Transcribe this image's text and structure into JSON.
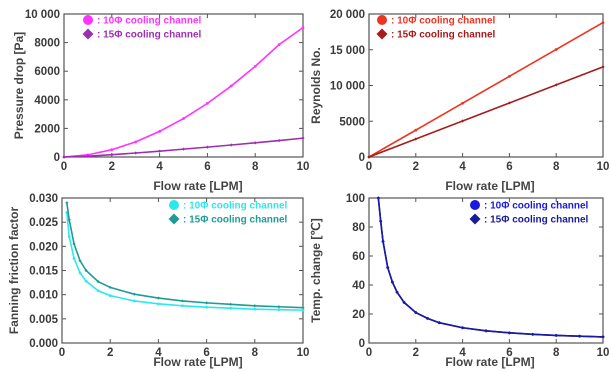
{
  "chart_data": [
    {
      "type": "line",
      "xlabel": "Flow rate [LPM]",
      "ylabel": "Pressure drop [Pa]",
      "xlim": [
        0,
        10
      ],
      "ylim": [
        0,
        10000
      ],
      "xticks": [
        "0",
        "2",
        "4",
        "6",
        "8",
        "10"
      ],
      "yticks": [
        "0",
        "2000",
        "4000",
        "6000",
        "8000",
        "10 000"
      ],
      "grid": false,
      "legend": "top-left",
      "series": [
        {
          "name": ": 10Φ cooling channel",
          "color": "#ff33ff",
          "marker": "circle",
          "x": [
            0,
            1,
            2,
            3,
            4,
            5,
            6,
            7,
            8,
            9,
            10
          ],
          "y": [
            0,
            150,
            510,
            1060,
            1790,
            2690,
            3750,
            4970,
            6340,
            7860,
            9050
          ]
        },
        {
          "name": ": 15Φ cooling channel",
          "color": "#9c2fb0",
          "marker": "diamond",
          "x": [
            0,
            1,
            2,
            3,
            4,
            5,
            6,
            7,
            8,
            9,
            10
          ],
          "y": [
            0,
            60,
            160,
            280,
            410,
            550,
            690,
            840,
            990,
            1150,
            1320
          ]
        }
      ]
    },
    {
      "type": "line",
      "xlabel": "Flow rate [LPM]",
      "ylabel": "Reynolds No.",
      "xlim": [
        0,
        10
      ],
      "ylim": [
        0,
        20000
      ],
      "xticks": [
        "0",
        "2",
        "4",
        "6",
        "8",
        "10"
      ],
      "yticks": [
        "0",
        "5000",
        "10 000",
        "15 000",
        "20 000"
      ],
      "grid": false,
      "legend": "top-left",
      "series": [
        {
          "name": ": 10Φ cooling channel",
          "color": "#ee3322",
          "marker": "circle",
          "x": [
            0,
            2,
            4,
            6,
            8,
            10
          ],
          "y": [
            0,
            3760,
            7520,
            11280,
            15040,
            18800
          ]
        },
        {
          "name": ": 15Φ cooling channel",
          "color": "#a51d1d",
          "marker": "diamond",
          "x": [
            0,
            2,
            4,
            6,
            8,
            10
          ],
          "y": [
            0,
            2520,
            5040,
            7560,
            10080,
            12600
          ]
        }
      ]
    },
    {
      "type": "line",
      "xlabel": "Flow rate [LPM]",
      "ylabel": "Fanning friction factor",
      "xlim": [
        0,
        10
      ],
      "ylim": [
        0,
        0.03
      ],
      "xticks": [
        "0",
        "2",
        "4",
        "6",
        "8",
        "10"
      ],
      "yticks": [
        "0.000",
        "0.005",
        "0.010",
        "0.015",
        "0.020",
        "0.025",
        "0.030"
      ],
      "grid": false,
      "legend": "top-right",
      "series": [
        {
          "name": ": 10Φ cooling channel",
          "color": "#2de8ea",
          "marker": "circle",
          "x": [
            0.2,
            0.3,
            0.5,
            0.75,
            1,
            1.5,
            2,
            3,
            4,
            5,
            6,
            7,
            8,
            9,
            10
          ],
          "y": [
            0.027,
            0.022,
            0.0175,
            0.0145,
            0.0128,
            0.0108,
            0.0098,
            0.0087,
            0.0081,
            0.0077,
            0.0074,
            0.0072,
            0.007,
            0.0069,
            0.0068
          ]
        },
        {
          "name": ": 15Φ cooling channel",
          "color": "#1f9b95",
          "marker": "diamond",
          "x": [
            0.2,
            0.3,
            0.5,
            0.75,
            1,
            1.5,
            2,
            3,
            4,
            5,
            6,
            7,
            8,
            9,
            10
          ],
          "y": [
            0.029,
            0.0255,
            0.0205,
            0.017,
            0.015,
            0.0127,
            0.0115,
            0.0101,
            0.0093,
            0.0087,
            0.0083,
            0.008,
            0.0077,
            0.0075,
            0.0073
          ]
        }
      ]
    },
    {
      "type": "line",
      "xlabel": "Flow rate [LPM]",
      "ylabel": "Temp. change [℃]",
      "xlim": [
        0,
        10
      ],
      "ylim": [
        0,
        100
      ],
      "xticks": [
        "0",
        "2",
        "4",
        "6",
        "8",
        "10"
      ],
      "yticks": [
        "0",
        "20",
        "40",
        "60",
        "80",
        "100"
      ],
      "grid": false,
      "legend": "top-right",
      "series": [
        {
          "name": ": 10Φ cooling channel",
          "color": "#1a1adc",
          "marker": "circle",
          "x": [
            0.4,
            0.5,
            0.6,
            0.8,
            1,
            1.2,
            1.5,
            2,
            2.5,
            3,
            4,
            5,
            6,
            7,
            8,
            9,
            10
          ],
          "y": [
            100,
            84,
            70,
            52,
            42,
            35,
            28,
            21,
            17,
            14,
            10.5,
            8.4,
            7,
            6,
            5.25,
            4.7,
            4.2
          ]
        },
        {
          "name": ": 15Φ cooling channel",
          "color": "#1a1a9a",
          "marker": "diamond",
          "x": [
            0.4,
            0.5,
            0.6,
            0.8,
            1,
            1.2,
            1.5,
            2,
            2.5,
            3,
            4,
            5,
            6,
            7,
            8,
            9,
            10
          ],
          "y": [
            100,
            84,
            70,
            52,
            42,
            35,
            28,
            21,
            17,
            14,
            10.5,
            8.4,
            7,
            6,
            5.25,
            4.7,
            4.2
          ]
        }
      ]
    }
  ]
}
